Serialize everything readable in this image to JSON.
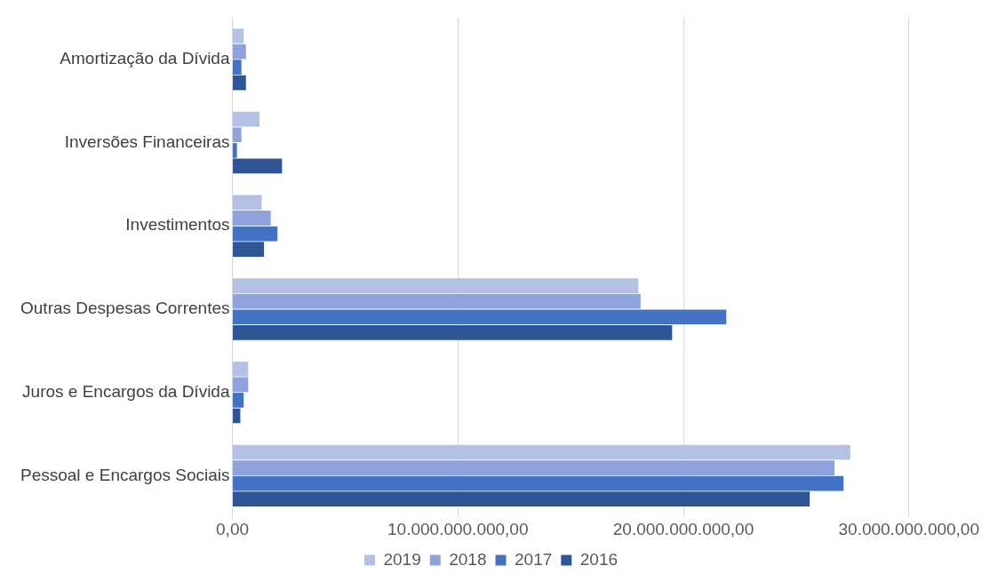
{
  "chart_data": {
    "type": "bar",
    "orientation": "horizontal",
    "categories": [
      "Amortização da Dívida",
      "Inversões Financeiras",
      "Investimentos",
      "Outras Despesas Correntes",
      "Juros e Encargos da Dívida",
      "Pessoal e Encargos Sociais"
    ],
    "series": [
      {
        "name": "2019",
        "color": "#b4c0e4",
        "values": [
          500000000,
          1200000000,
          1300000000,
          18000000000,
          700000000,
          27400000000
        ]
      },
      {
        "name": "2018",
        "color": "#8ea2dc",
        "values": [
          600000000,
          400000000,
          1700000000,
          18100000000,
          700000000,
          26700000000
        ]
      },
      {
        "name": "2017",
        "color": "#4472c4",
        "values": [
          400000000,
          200000000,
          2000000000,
          21900000000,
          500000000,
          27100000000
        ]
      },
      {
        "name": "2016",
        "color": "#2f5597",
        "values": [
          600000000,
          2200000000,
          1400000000,
          19500000000,
          350000000,
          25600000000
        ]
      }
    ],
    "xlim": [
      0,
      30000000000
    ],
    "xticks": [
      {
        "value": 0,
        "label": "0,00"
      },
      {
        "value": 10000000000,
        "label": "10.000.000.000,00"
      },
      {
        "value": 20000000000,
        "label": "20.000.000.000,00"
      },
      {
        "value": 30000000000,
        "label": "30.000.000.000,00"
      }
    ],
    "grid": "x",
    "legend": "bottom"
  }
}
